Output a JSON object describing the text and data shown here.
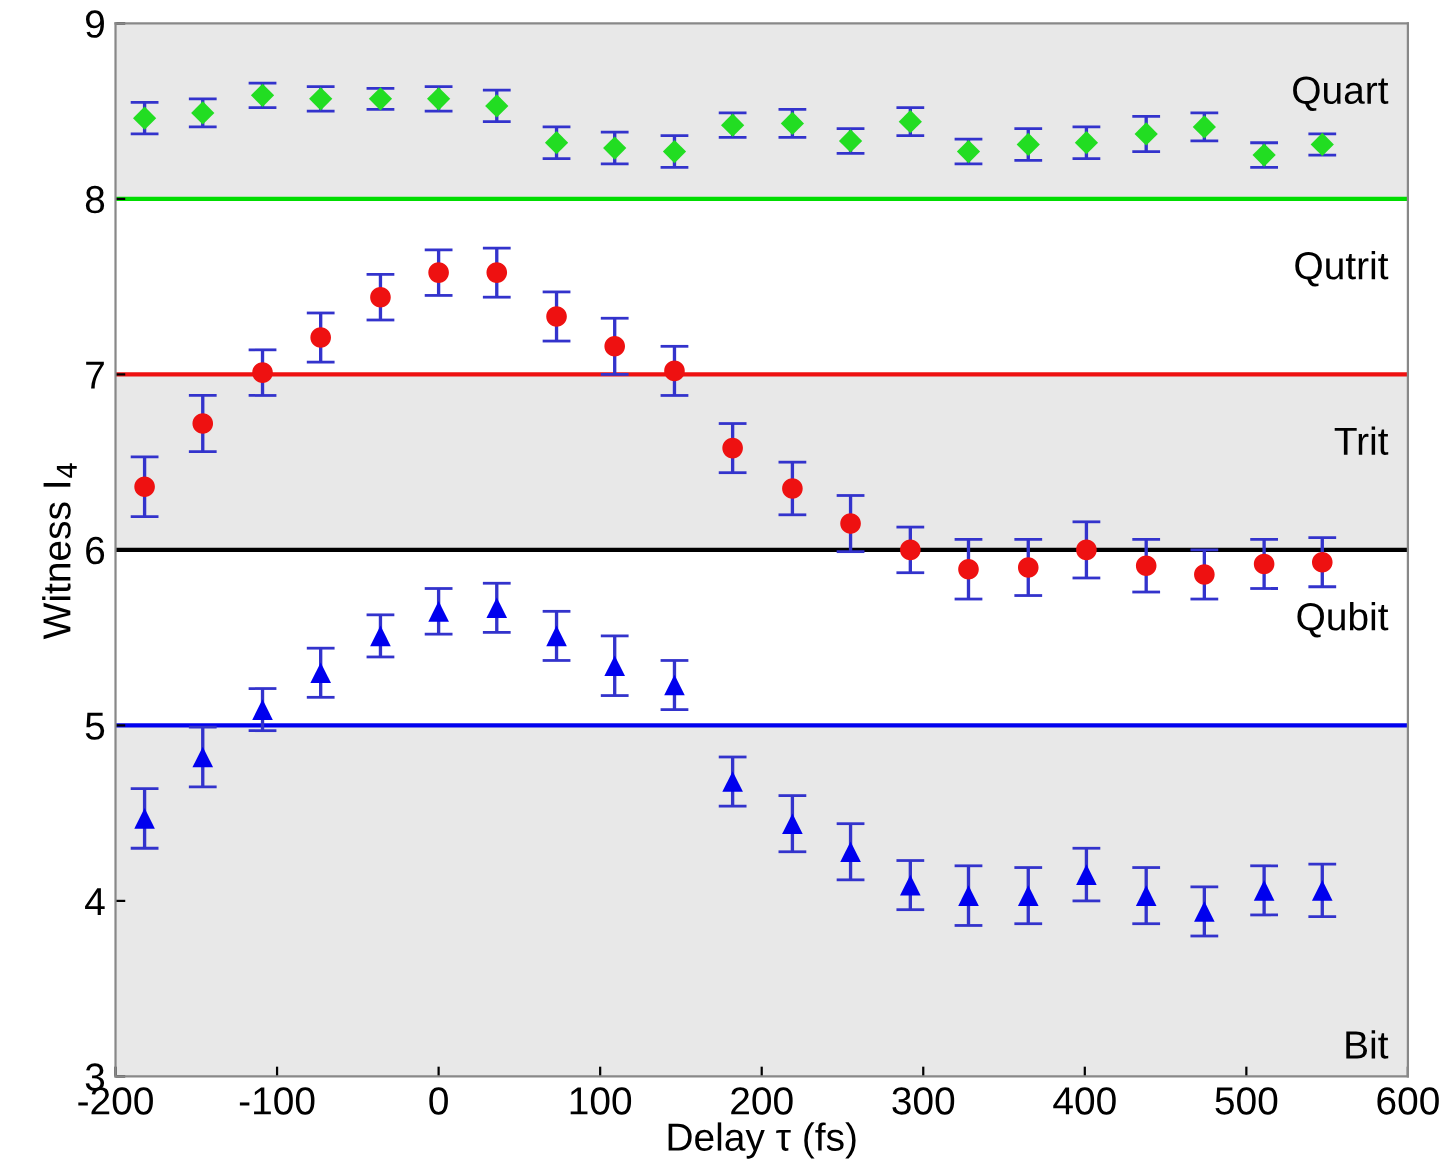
{
  "chart_data": {
    "type": "scatter",
    "xlabel": "Delay τ (fs)",
    "ylabel": "Witness I$_{4}$",
    "xlim": [
      -200,
      600
    ],
    "ylim": [
      3,
      9
    ],
    "xticks": [
      -200,
      -100,
      0,
      100,
      200,
      300,
      400,
      500,
      600
    ],
    "yticks": [
      3,
      4,
      5,
      6,
      7,
      8,
      9
    ],
    "grid": false,
    "x": [
      -182,
      -146,
      -109,
      -73,
      -36,
      0,
      36,
      73,
      109,
      146,
      182,
      219,
      255,
      292,
      328,
      365,
      401,
      438,
      474,
      511,
      547
    ],
    "series": [
      {
        "color": "#22dd22",
        "marker": "diamond",
        "values": [
          8.46,
          8.49,
          8.59,
          8.57,
          8.57,
          8.57,
          8.53,
          8.32,
          8.29,
          8.27,
          8.42,
          8.43,
          8.33,
          8.44,
          8.27,
          8.31,
          8.32,
          8.37,
          8.41,
          8.25,
          8.31
        ],
        "errors": [
          0.09,
          0.08,
          0.07,
          0.07,
          0.06,
          0.07,
          0.09,
          0.09,
          0.09,
          0.09,
          0.07,
          0.08,
          0.07,
          0.08,
          0.07,
          0.09,
          0.09,
          0.1,
          0.08,
          0.07,
          0.06
        ]
      },
      {
        "color": "#ee1111",
        "marker": "circle",
        "values": [
          6.36,
          6.72,
          7.01,
          7.21,
          7.44,
          7.58,
          7.58,
          7.33,
          7.16,
          7.02,
          6.58,
          6.35,
          6.15,
          6.0,
          5.89,
          5.9,
          6.0,
          5.91,
          5.86,
          5.92,
          5.93
        ],
        "errors": [
          0.17,
          0.16,
          0.13,
          0.14,
          0.13,
          0.13,
          0.14,
          0.14,
          0.16,
          0.14,
          0.14,
          0.15,
          0.16,
          0.13,
          0.17,
          0.16,
          0.16,
          0.15,
          0.14,
          0.14,
          0.14
        ]
      },
      {
        "color": "#0000ee",
        "marker": "triangle",
        "values": [
          4.47,
          4.82,
          5.09,
          5.3,
          5.51,
          5.65,
          5.67,
          5.51,
          5.34,
          5.23,
          4.68,
          4.44,
          4.28,
          4.09,
          4.03,
          4.03,
          4.15,
          4.03,
          3.94,
          4.06,
          4.06
        ],
        "errors": [
          0.17,
          0.17,
          0.12,
          0.14,
          0.12,
          0.13,
          0.14,
          0.14,
          0.17,
          0.14,
          0.14,
          0.16,
          0.16,
          0.14,
          0.17,
          0.16,
          0.15,
          0.16,
          0.14,
          0.14,
          0.15
        ]
      }
    ],
    "bands": [
      {
        "axis": "y",
        "from": 8,
        "to": 9,
        "label": "Quart",
        "color": "#e8e8e8"
      },
      {
        "axis": "y",
        "from": 6,
        "to": 7,
        "label": "Trit",
        "color": "#e8e8e8"
      },
      {
        "axis": "y",
        "from": 3,
        "to": 5,
        "label": "Bit",
        "color": "#e8e8e8"
      }
    ],
    "ref_lines": [
      {
        "axis": "y",
        "value": 8,
        "color": "#00dd00"
      },
      {
        "axis": "y",
        "value": 7,
        "color": "#ee1111",
        "label": "Qutrit"
      },
      {
        "axis": "y",
        "value": 6,
        "color": "#000000"
      },
      {
        "axis": "y",
        "value": 5,
        "color": "#0000ee",
        "label": "Qubit"
      }
    ]
  }
}
